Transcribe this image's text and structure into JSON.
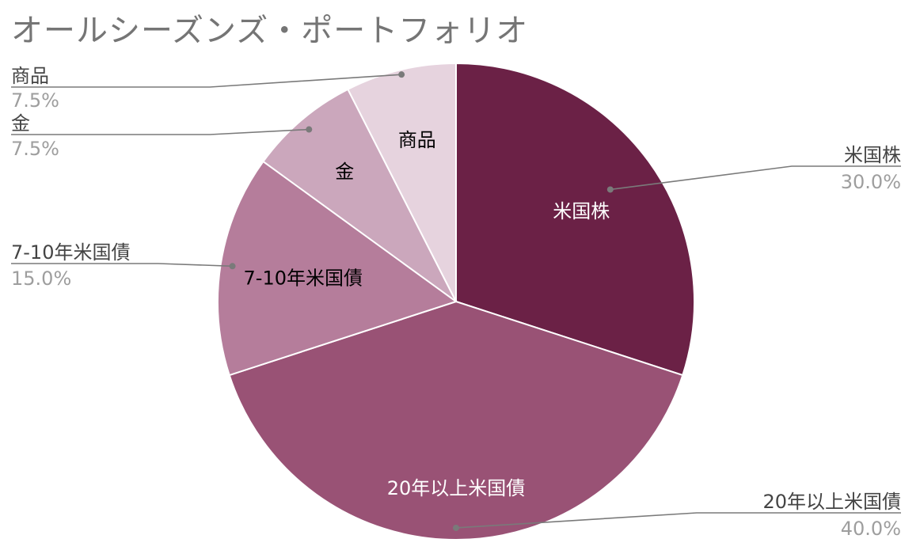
{
  "chart_data": {
    "type": "pie",
    "title": "オールシーズンズ・ポートフォリオ",
    "slices": [
      {
        "label": "米国株",
        "value": 30.0,
        "percent_label": "30.0%",
        "color": "#6b2146",
        "inner_text_color": "#ffffff"
      },
      {
        "label": "20年以上米国債",
        "value": 40.0,
        "percent_label": "40.0%",
        "color": "#995275",
        "inner_text_color": "#ffffff"
      },
      {
        "label": "7-10年米国債",
        "value": 15.0,
        "percent_label": "15.0%",
        "color": "#b57d9b",
        "inner_text_color": "#000000"
      },
      {
        "label": "金",
        "value": 7.5,
        "percent_label": "7.5%",
        "color": "#cba7bc",
        "inner_text_color": "#000000"
      },
      {
        "label": "商品",
        "value": 7.5,
        "percent_label": "7.5%",
        "color": "#e6d3de",
        "inner_text_color": "#000000"
      }
    ],
    "start_angle_deg": 0,
    "direction": "clockwise",
    "legend": "callout-labels"
  },
  "colors": {
    "callout_line": "#7a7a7a",
    "callout_label": "#444444",
    "callout_percent": "#9e9e9e",
    "title": "#757575",
    "slice_border": "#ffffff"
  }
}
